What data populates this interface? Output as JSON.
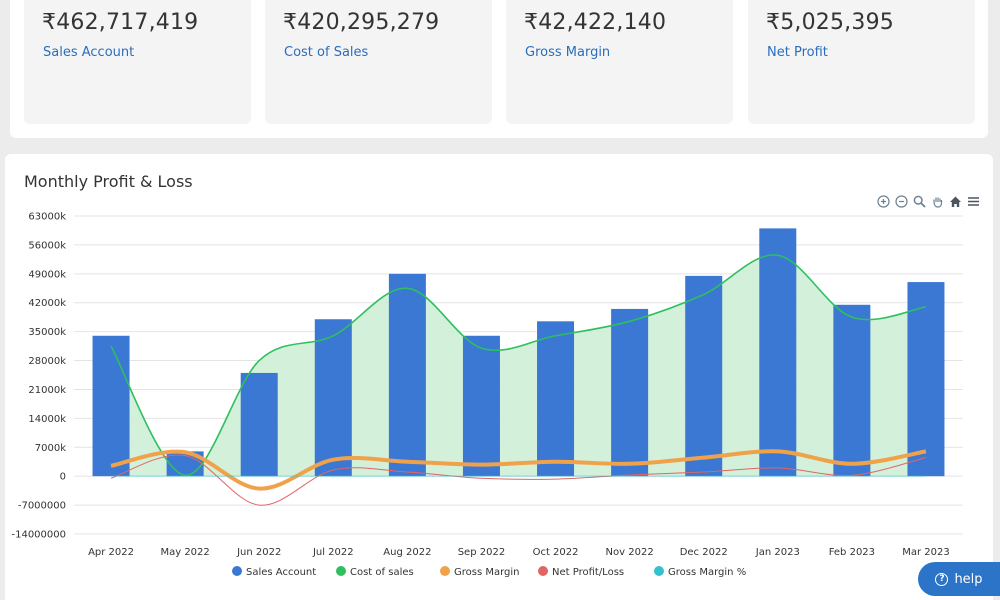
{
  "kpis": [
    {
      "value": "₹462,717,419",
      "label": "Sales Account"
    },
    {
      "value": "₹420,295,279",
      "label": "Cost of Sales"
    },
    {
      "value": "₹42,422,140",
      "label": "Gross Margin"
    },
    {
      "value": "₹5,025,395",
      "label": "Net Profit"
    }
  ],
  "chart_panel": {
    "title": "Monthly Profit & Loss"
  },
  "toolbar": {
    "icons": [
      "zoom-in-icon",
      "zoom-out-icon",
      "magnify-icon",
      "pan-hand-icon",
      "home-icon",
      "menu-icon"
    ]
  },
  "help": {
    "label": "help"
  },
  "colors": {
    "sales": "#3a78d4",
    "cost": "#2ebf5e",
    "cost_fill": "#cdeed6",
    "gross": "#f0a24a",
    "net": "#e06666",
    "gm_pct": "#33c1cf",
    "label_blue": "#2a6ebb"
  },
  "chart_data": {
    "type": "bar",
    "title": "Monthly Profit & Loss",
    "categories": [
      "Apr 2022",
      "May 2022",
      "Jun 2022",
      "Jul 2022",
      "Aug 2022",
      "Sep 2022",
      "Oct 2022",
      "Nov 2022",
      "Dec 2022",
      "Jan 2023",
      "Feb 2023",
      "Mar 2023"
    ],
    "yticks": [
      "63000k",
      "56000k",
      "49000k",
      "42000k",
      "35000k",
      "28000k",
      "21000k",
      "14000k",
      "7000k",
      "0",
      "-7000000",
      "-14000000"
    ],
    "ylim": [
      -14000000,
      63000000
    ],
    "grid": true,
    "legend_position": "bottom",
    "series": [
      {
        "name": "Sales Account",
        "type": "bar",
        "values": [
          34000000,
          6000000,
          25000000,
          38000000,
          49000000,
          34000000,
          37500000,
          40500000,
          48500000,
          60000000,
          41500000,
          47000000
        ]
      },
      {
        "name": "Cost of sales",
        "type": "area",
        "values": [
          31500000,
          200000,
          28000000,
          34000000,
          45500000,
          31000000,
          34000000,
          37500000,
          44000000,
          53500000,
          38500000,
          41000000
        ]
      },
      {
        "name": "Gross Margin",
        "type": "line",
        "values": [
          2500000,
          5800000,
          -3000000,
          4000000,
          3500000,
          2800000,
          3500000,
          3000000,
          4500000,
          6000000,
          3000000,
          6000000
        ]
      },
      {
        "name": "Net Profit/Loss",
        "type": "line",
        "values": [
          -500000,
          5000000,
          -7000000,
          1500000,
          1000000,
          -500000,
          -700000,
          300000,
          1000000,
          2000000,
          200000,
          4500000
        ]
      },
      {
        "name": "Gross Margin %",
        "type": "line",
        "values": [
          0,
          0,
          0,
          0,
          0,
          0,
          0,
          0,
          0,
          0,
          0,
          0
        ]
      }
    ]
  }
}
